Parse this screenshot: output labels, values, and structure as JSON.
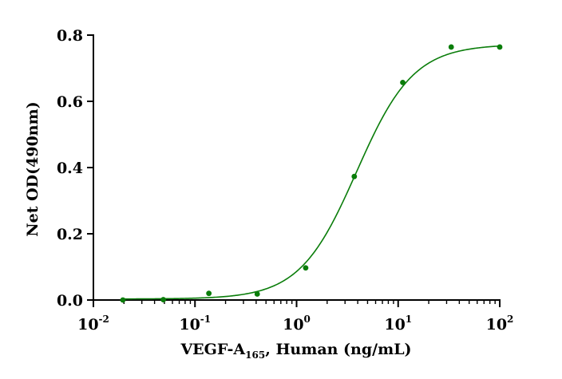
{
  "chart_data": {
    "type": "scatter",
    "xscale": "log",
    "xlim": [
      0.01,
      100
    ],
    "ylim": [
      0,
      0.8
    ],
    "grid": false,
    "legend": "none",
    "color": "#0a7d0a",
    "xlabel": {
      "main": "VEGF-A",
      "sub": "165",
      "rest": ", Human (ng/mL)"
    },
    "ylabel": "Net OD(490nm)",
    "x_ticks": [
      {
        "value": 0.01,
        "base": "10",
        "exp": "-2"
      },
      {
        "value": 0.1,
        "base": "10",
        "exp": "-1"
      },
      {
        "value": 1,
        "base": "10",
        "exp": "0"
      },
      {
        "value": 10,
        "base": "10",
        "exp": "1"
      },
      {
        "value": 100,
        "base": "10",
        "exp": "2"
      }
    ],
    "y_ticks": [
      {
        "value": 0.0,
        "label": "0.0"
      },
      {
        "value": 0.2,
        "label": "0.2"
      },
      {
        "value": 0.4,
        "label": "0.4"
      },
      {
        "value": 0.6,
        "label": "0.6"
      },
      {
        "value": 0.8,
        "label": "0.8"
      }
    ],
    "points": [
      {
        "x": 0.0195,
        "y": 0.0
      },
      {
        "x": 0.0488,
        "y": 0.001
      },
      {
        "x": 0.137,
        "y": 0.02
      },
      {
        "x": 0.41,
        "y": 0.018
      },
      {
        "x": 1.23,
        "y": 0.097
      },
      {
        "x": 3.7,
        "y": 0.373
      },
      {
        "x": 11.1,
        "y": 0.657
      },
      {
        "x": 33.3,
        "y": 0.764
      },
      {
        "x": 100,
        "y": 0.764
      }
    ],
    "fit": {
      "model": "4PL",
      "bottom": 0.003,
      "top": 0.772,
      "ec50": 3.9,
      "hill": 1.55
    }
  }
}
